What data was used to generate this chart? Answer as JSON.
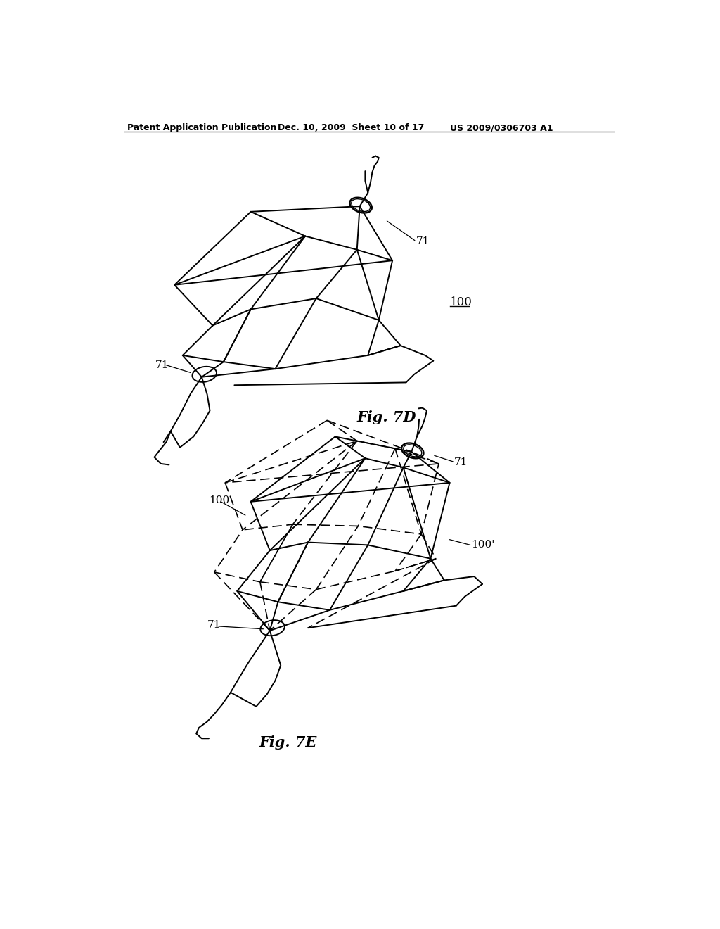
{
  "bg_color": "#ffffff",
  "line_color": "#000000",
  "header_left": "Patent Application Publication",
  "header_mid": "Dec. 10, 2009  Sheet 10 of 17",
  "header_right": "US 2009/0306703 A1",
  "fig7d_label": "Fig. 7D",
  "fig7e_label": "Fig. 7E",
  "label_100_7d": "100",
  "label_71_7d_top": "71",
  "label_71_7d_bot": "71",
  "label_100_7e": "100",
  "label_71_7e_top": "71",
  "label_71_7e_bot": "71",
  "label_100prime": "100'"
}
